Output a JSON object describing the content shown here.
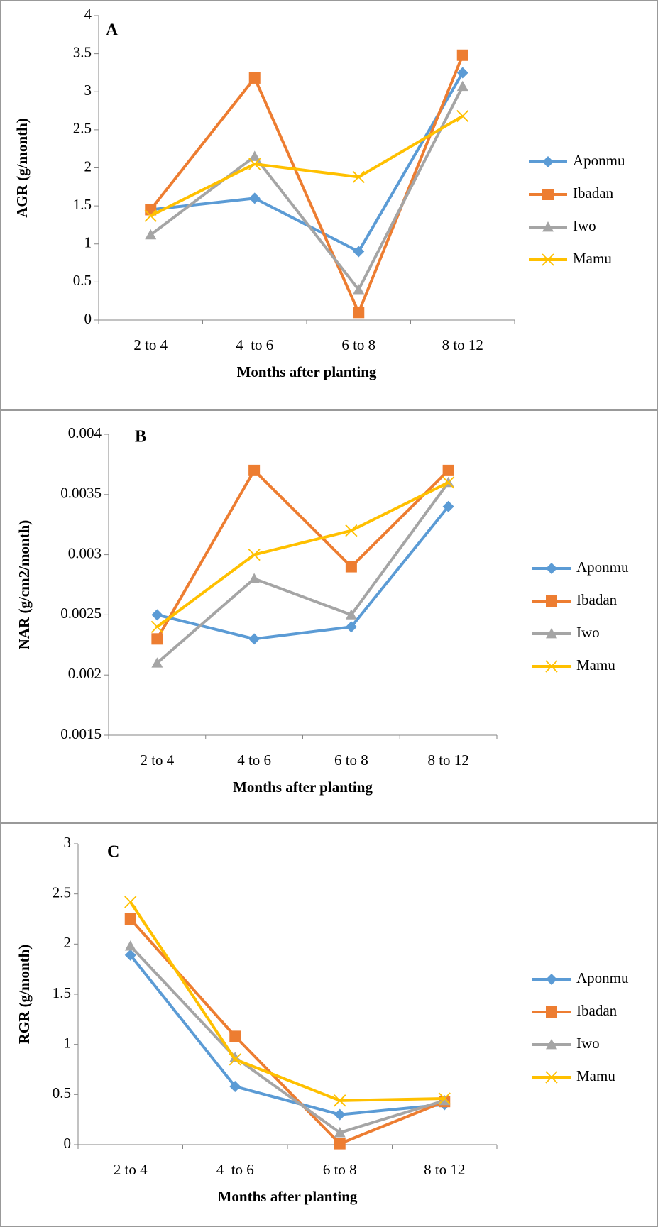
{
  "chart_data": [
    {
      "type": "line",
      "annotation": "A",
      "y_label": "AGR (g/month)",
      "x_label": "Months after planting",
      "categories": [
        "2 to 4",
        "4  to 6",
        "6 to 8",
        "8 to 12"
      ],
      "ylim": [
        0,
        4
      ],
      "yticks": [
        0,
        0.5,
        1,
        1.5,
        2,
        2.5,
        3,
        3.5,
        4
      ],
      "series": [
        {
          "name": "Aponmu",
          "color": "#5b9bd5",
          "marker": "diamond",
          "values": [
            1.45,
            1.6,
            0.9,
            3.25
          ]
        },
        {
          "name": "Ibadan",
          "color": "#ed7d31",
          "marker": "square",
          "values": [
            1.45,
            3.18,
            0.1,
            3.48
          ]
        },
        {
          "name": "Iwo",
          "color": "#a5a5a5",
          "marker": "triangle",
          "values": [
            1.12,
            2.15,
            0.4,
            3.07
          ]
        },
        {
          "name": "Mamu",
          "color": "#ffc000",
          "marker": "x",
          "values": [
            1.37,
            2.05,
            1.88,
            2.68
          ]
        }
      ]
    },
    {
      "type": "line",
      "annotation": "B",
      "y_label": "NAR (g/cm2/month)",
      "x_label": "Months after planting",
      "categories": [
        "2 to 4",
        "4 to 6",
        "6 to 8",
        "8 to 12"
      ],
      "ylim": [
        0.0015,
        0.004
      ],
      "yticks": [
        0.0015,
        0.002,
        0.0025,
        0.003,
        0.0035,
        0.004
      ],
      "series": [
        {
          "name": "Aponmu",
          "color": "#5b9bd5",
          "marker": "diamond",
          "values": [
            0.0025,
            0.0023,
            0.0024,
            0.0034
          ]
        },
        {
          "name": "Ibadan",
          "color": "#ed7d31",
          "marker": "square",
          "values": [
            0.0023,
            0.0037,
            0.0029,
            0.0037
          ]
        },
        {
          "name": "Iwo",
          "color": "#a5a5a5",
          "marker": "triangle",
          "values": [
            0.0021,
            0.0028,
            0.0025,
            0.0036
          ]
        },
        {
          "name": "Mamu",
          "color": "#ffc000",
          "marker": "x",
          "values": [
            0.0024,
            0.003,
            0.0032,
            0.0036
          ]
        }
      ]
    },
    {
      "type": "line",
      "annotation": "C",
      "y_label": "RGR (g/month)",
      "x_label": "Months after planting",
      "categories": [
        "2 to 4",
        "4  to 6",
        "6 to 8",
        "8 to 12"
      ],
      "ylim": [
        0,
        3
      ],
      "yticks": [
        0,
        0.5,
        1,
        1.5,
        2,
        2.5,
        3
      ],
      "series": [
        {
          "name": "Aponmu",
          "color": "#5b9bd5",
          "marker": "diamond",
          "values": [
            1.89,
            0.58,
            0.3,
            0.4
          ]
        },
        {
          "name": "Ibadan",
          "color": "#ed7d31",
          "marker": "square",
          "values": [
            2.25,
            1.08,
            0.01,
            0.43
          ]
        },
        {
          "name": "Iwo",
          "color": "#a5a5a5",
          "marker": "triangle",
          "values": [
            1.98,
            0.87,
            0.12,
            0.44
          ]
        },
        {
          "name": "Mamu",
          "color": "#ffc000",
          "marker": "x",
          "values": [
            2.42,
            0.85,
            0.44,
            0.46
          ]
        }
      ]
    }
  ]
}
